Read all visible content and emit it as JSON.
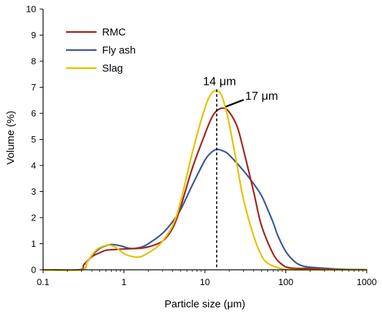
{
  "chart_data": {
    "type": "line",
    "xlabel": "Particle size (μm)",
    "ylabel": "Volume (%)",
    "xscale": "log",
    "xlim": [
      0.1,
      1000
    ],
    "ylim": [
      0,
      10
    ],
    "x_ticks": [
      0.1,
      1,
      10,
      100,
      1000
    ],
    "x_tick_labels": [
      "0.1",
      "1",
      "10",
      "100",
      "1000"
    ],
    "y_ticks": [
      0,
      1,
      2,
      3,
      4,
      5,
      6,
      7,
      8,
      9,
      10
    ],
    "y_tick_labels": [
      "0",
      "1",
      "2",
      "3",
      "4",
      "5",
      "6",
      "7",
      "8",
      "9",
      "10"
    ],
    "grid": false,
    "legend_position": "top-left",
    "series": [
      {
        "name": "RMC",
        "color": "#a0281e",
        "x": [
          0.1,
          0.28,
          0.32,
          0.4,
          0.5,
          0.6,
          0.8,
          1.0,
          1.5,
          2.0,
          3.0,
          4.0,
          5.0,
          7.0,
          10,
          12,
          14,
          17,
          20,
          25,
          30,
          40,
          50,
          70,
          90,
          110,
          150,
          200,
          300,
          500,
          1000
        ],
        "y": [
          0,
          0,
          0.2,
          0.5,
          0.65,
          0.75,
          0.78,
          0.8,
          0.82,
          0.88,
          1.1,
          1.6,
          2.4,
          3.9,
          5.2,
          5.8,
          6.1,
          6.2,
          6.05,
          5.5,
          4.6,
          3.0,
          1.7,
          0.6,
          0.2,
          0.08,
          0.05,
          0.05,
          0.03,
          0.01,
          0
        ]
      },
      {
        "name": "Fly ash",
        "color": "#3e5a9a",
        "x": [
          0.1,
          0.3,
          0.35,
          0.45,
          0.55,
          0.7,
          0.9,
          1.2,
          1.6,
          2.0,
          3.0,
          4.0,
          5.0,
          7.0,
          10,
          12,
          14,
          17,
          20,
          30,
          40,
          50,
          60,
          70,
          80,
          100,
          130,
          160,
          200,
          300,
          500,
          1000
        ],
        "y": [
          0,
          0,
          0.3,
          0.7,
          0.88,
          0.97,
          0.92,
          0.82,
          0.86,
          1.0,
          1.4,
          1.85,
          2.3,
          3.25,
          4.2,
          4.5,
          4.62,
          4.55,
          4.4,
          3.8,
          3.3,
          2.85,
          2.3,
          1.8,
          1.3,
          0.7,
          0.3,
          0.15,
          0.1,
          0.06,
          0.02,
          0
        ]
      },
      {
        "name": "Slag",
        "color": "#e6c200",
        "x": [
          0.1,
          0.3,
          0.35,
          0.45,
          0.55,
          0.65,
          0.8,
          1.0,
          1.3,
          1.6,
          2.0,
          2.5,
          3.0,
          4.0,
          5.0,
          7.0,
          10,
          12,
          14,
          16,
          18,
          20,
          25,
          30,
          40,
          50,
          60,
          80,
          100,
          150,
          200,
          400,
          1000
        ],
        "y": [
          0,
          0,
          0.3,
          0.75,
          0.9,
          0.95,
          0.85,
          0.62,
          0.5,
          0.5,
          0.65,
          0.85,
          1.1,
          1.7,
          2.6,
          4.5,
          6.2,
          6.75,
          6.87,
          6.7,
          6.2,
          5.6,
          4.0,
          2.7,
          1.3,
          0.55,
          0.25,
          0.08,
          0.02,
          0,
          0,
          0,
          0
        ]
      }
    ],
    "annotations": [
      {
        "text": "14 μm",
        "x": 14,
        "y": 6.87
      },
      {
        "text": "17 μm",
        "x": 17,
        "y": 6.2
      }
    ]
  }
}
